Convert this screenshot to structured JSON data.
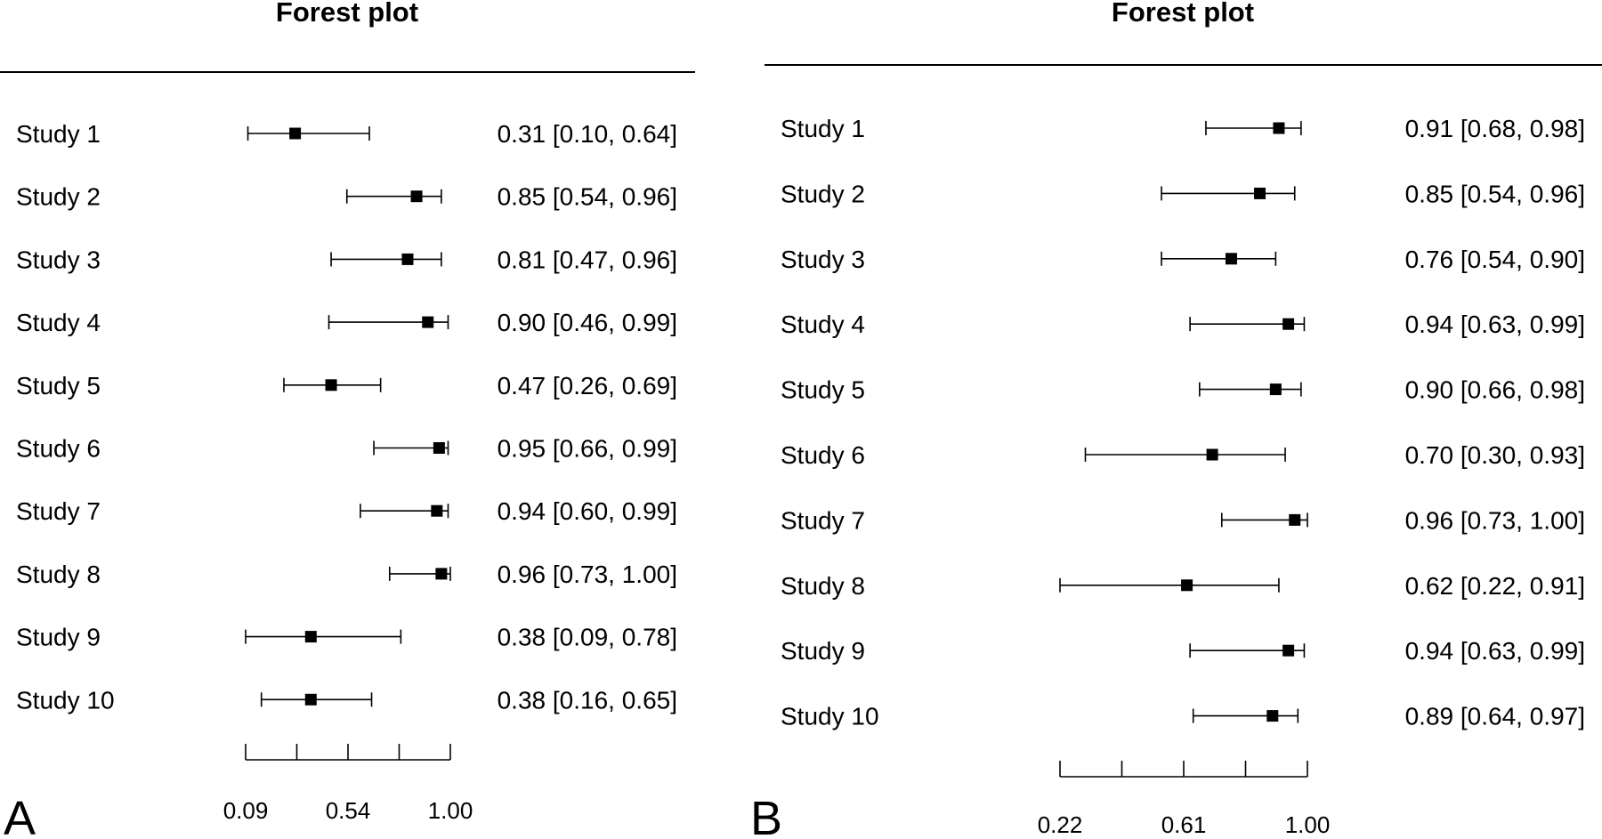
{
  "chart_data": [
    {
      "type": "forest",
      "panel_label": "A",
      "title": "Forest plot",
      "xlim": [
        0.09,
        1.0
      ],
      "ticks": [
        0.09,
        0.3175,
        0.545,
        0.7725,
        1.0
      ],
      "tick_labels": [
        "0.09",
        "",
        "0.54",
        "",
        "1.00"
      ],
      "studies": [
        {
          "label": "Study 1",
          "estimate": 0.31,
          "lower": 0.1,
          "upper": 0.64,
          "text": "0.31 [0.10, 0.64]"
        },
        {
          "label": "Study 2",
          "estimate": 0.85,
          "lower": 0.54,
          "upper": 0.96,
          "text": "0.85 [0.54, 0.96]"
        },
        {
          "label": "Study 3",
          "estimate": 0.81,
          "lower": 0.47,
          "upper": 0.96,
          "text": "0.81 [0.47, 0.96]"
        },
        {
          "label": "Study 4",
          "estimate": 0.9,
          "lower": 0.46,
          "upper": 0.99,
          "text": "0.90 [0.46, 0.99]"
        },
        {
          "label": "Study 5",
          "estimate": 0.47,
          "lower": 0.26,
          "upper": 0.69,
          "text": "0.47 [0.26, 0.69]"
        },
        {
          "label": "Study 6",
          "estimate": 0.95,
          "lower": 0.66,
          "upper": 0.99,
          "text": "0.95 [0.66, 0.99]"
        },
        {
          "label": "Study 7",
          "estimate": 0.94,
          "lower": 0.6,
          "upper": 0.99,
          "text": "0.94 [0.60, 0.99]"
        },
        {
          "label": "Study 8",
          "estimate": 0.96,
          "lower": 0.73,
          "upper": 1.0,
          "text": "0.96 [0.73, 1.00]"
        },
        {
          "label": "Study 9",
          "estimate": 0.38,
          "lower": 0.09,
          "upper": 0.78,
          "text": "0.38 [0.09, 0.78]"
        },
        {
          "label": "Study 10",
          "estimate": 0.38,
          "lower": 0.16,
          "upper": 0.65,
          "text": "0.38 [0.16, 0.65]"
        }
      ]
    },
    {
      "type": "forest",
      "panel_label": "B",
      "title": "Forest plot",
      "xlim": [
        0.22,
        1.0
      ],
      "ticks": [
        0.22,
        0.415,
        0.61,
        0.805,
        1.0
      ],
      "tick_labels": [
        "0.22",
        "",
        "0.61",
        "",
        "1.00"
      ],
      "studies": [
        {
          "label": "Study 1",
          "estimate": 0.91,
          "lower": 0.68,
          "upper": 0.98,
          "text": "0.91 [0.68, 0.98]"
        },
        {
          "label": "Study 2",
          "estimate": 0.85,
          "lower": 0.54,
          "upper": 0.96,
          "text": "0.85 [0.54, 0.96]"
        },
        {
          "label": "Study 3",
          "estimate": 0.76,
          "lower": 0.54,
          "upper": 0.9,
          "text": "0.76 [0.54, 0.90]"
        },
        {
          "label": "Study 4",
          "estimate": 0.94,
          "lower": 0.63,
          "upper": 0.99,
          "text": "0.94 [0.63, 0.99]"
        },
        {
          "label": "Study 5",
          "estimate": 0.9,
          "lower": 0.66,
          "upper": 0.98,
          "text": "0.90 [0.66, 0.98]"
        },
        {
          "label": "Study 6",
          "estimate": 0.7,
          "lower": 0.3,
          "upper": 0.93,
          "text": "0.70 [0.30, 0.93]"
        },
        {
          "label": "Study 7",
          "estimate": 0.96,
          "lower": 0.73,
          "upper": 1.0,
          "text": "0.96 [0.73, 1.00]"
        },
        {
          "label": "Study 8",
          "estimate": 0.62,
          "lower": 0.22,
          "upper": 0.91,
          "text": "0.62 [0.22, 0.91]"
        },
        {
          "label": "Study 9",
          "estimate": 0.94,
          "lower": 0.63,
          "upper": 0.99,
          "text": "0.94 [0.63, 0.99]"
        },
        {
          "label": "Study 10",
          "estimate": 0.89,
          "lower": 0.64,
          "upper": 0.97,
          "text": "0.89 [0.64, 0.97]"
        }
      ]
    }
  ],
  "colors": {
    "ink": "#000000",
    "background": "#ffffff"
  }
}
